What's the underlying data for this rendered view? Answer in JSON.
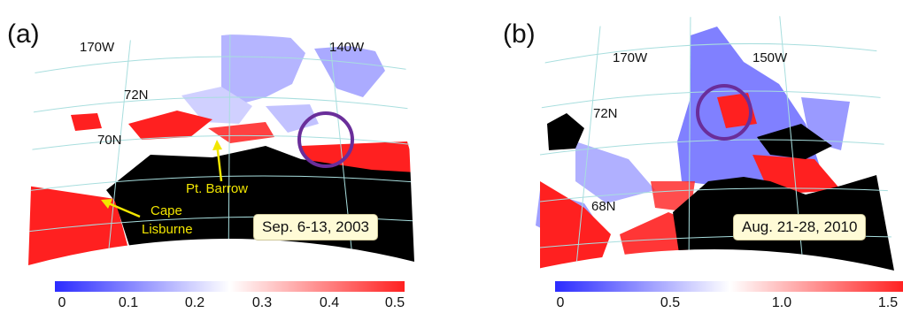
{
  "panel_a": {
    "label": "(a)",
    "lon_labels": [
      "170W",
      "140W"
    ],
    "lat_labels": [
      "72N",
      "70N"
    ],
    "places": [
      "Pt. Barrow",
      "Cape",
      "Lisburne"
    ],
    "date": "Sep. 6-13, 2003",
    "colorbar": {
      "ticks": [
        "0",
        "0.1",
        "0.2",
        "0.3",
        "0.4",
        "0.5"
      ],
      "colors": [
        "#2b2bff",
        "#ffffff",
        "#ff2020"
      ]
    }
  },
  "panel_b": {
    "label": "(b)",
    "lon_labels": [
      "170W",
      "150W"
    ],
    "lat_labels": [
      "72N",
      "68N"
    ],
    "date": "Aug. 21-28, 2010",
    "colorbar": {
      "ticks": [
        "0",
        "0.5",
        "1.0",
        "1.5"
      ],
      "colors": [
        "#2b2bff",
        "#ffffff",
        "#ff2020"
      ]
    }
  },
  "colors": {
    "land": "#000000",
    "ocean": "#ffffff",
    "graticule": "#a8dede",
    "circle": "#6a2e9a",
    "annotation": "#f2e600"
  }
}
